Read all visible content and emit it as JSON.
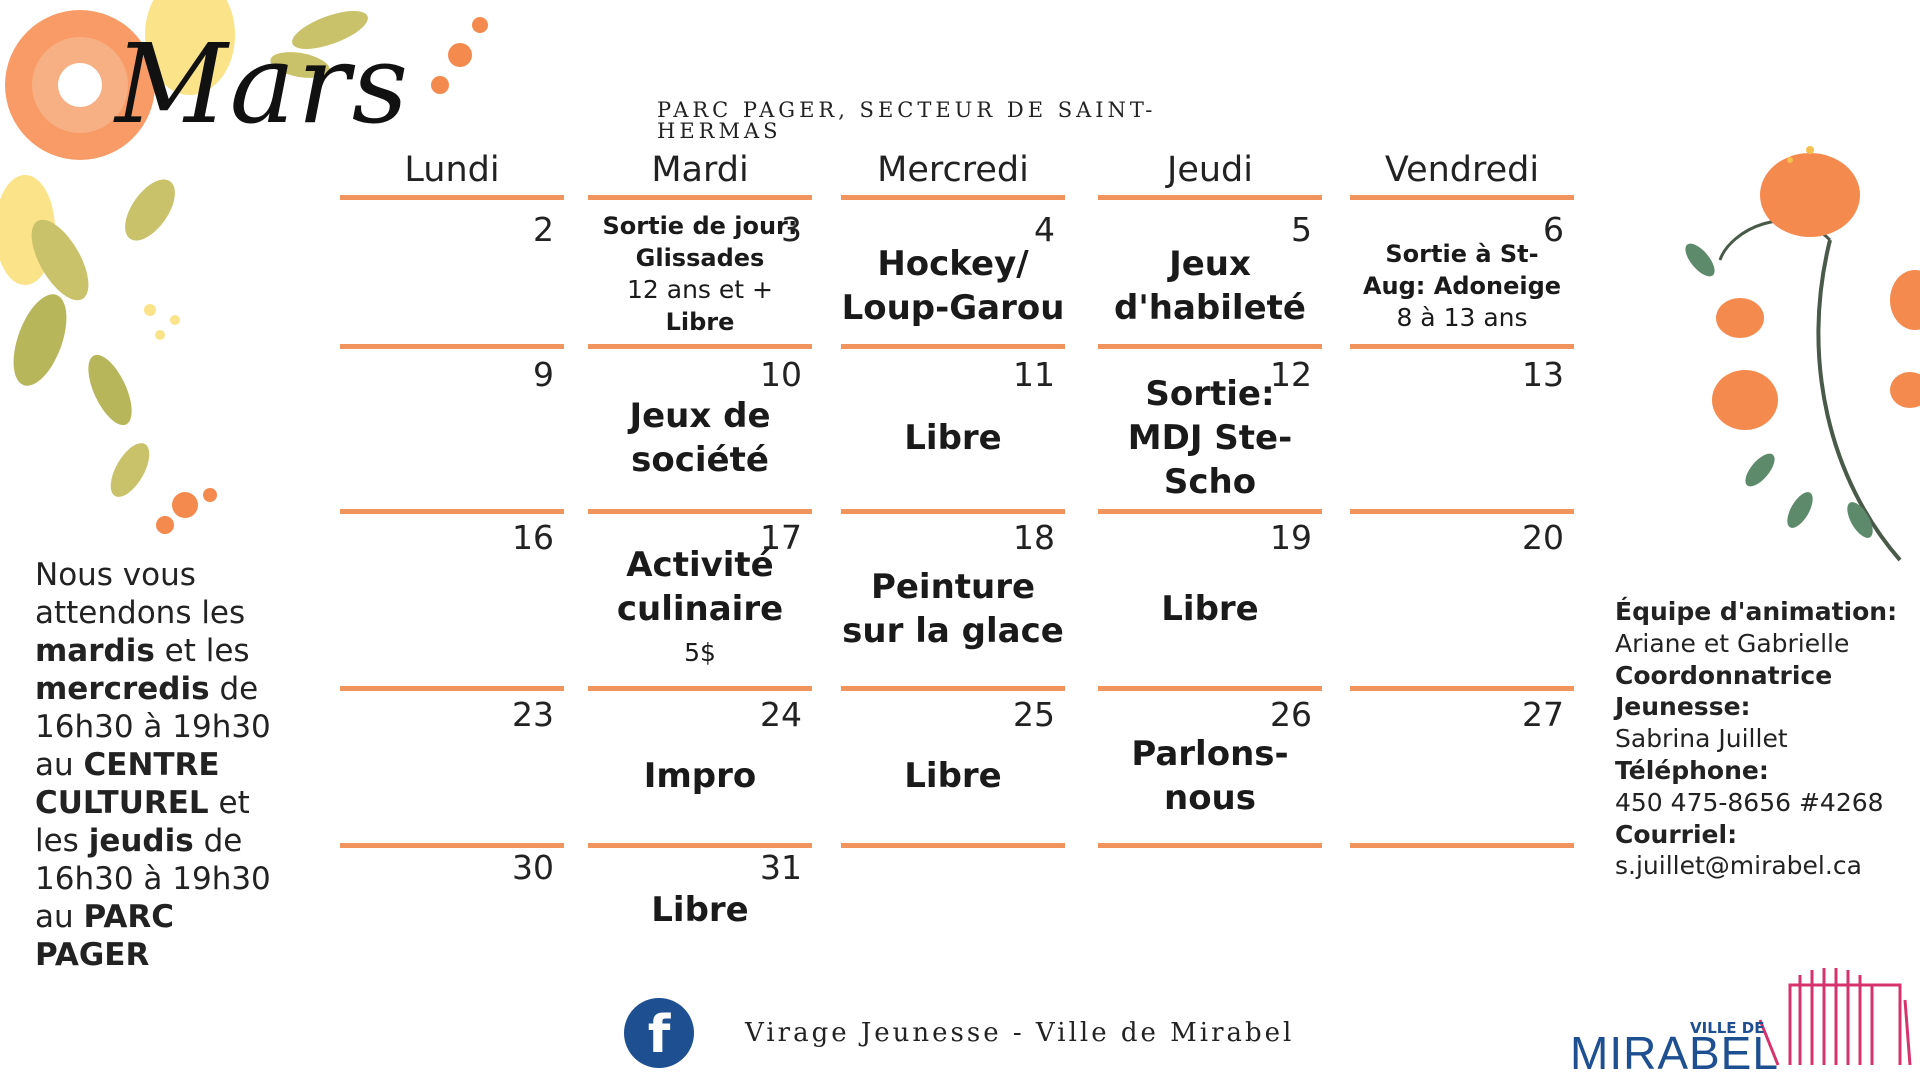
{
  "header": {
    "month": "Mars",
    "location": "PARC PAGER, SECTEUR DE SAINT-HERMAS"
  },
  "days": [
    "Lundi",
    "Mardi",
    "Mercredi",
    "Jeudi",
    "Vendredi"
  ],
  "weeks": [
    [
      {
        "date": "2",
        "event": []
      },
      {
        "date": "3",
        "event": [
          "Sortie de jour:",
          "Glissades"
        ],
        "sub": "12 ans et +",
        "event2": "Libre"
      },
      {
        "date": "4",
        "event": [
          "Hockey/",
          "Loup-Garou"
        ]
      },
      {
        "date": "5",
        "event": [
          "Jeux",
          "d'habileté"
        ]
      },
      {
        "date": "6",
        "event": [
          "Sortie à St-",
          "Aug: Adoneige"
        ],
        "sub": "8 à 13 ans"
      }
    ],
    [
      {
        "date": "9",
        "event": []
      },
      {
        "date": "10",
        "event": [
          "Jeux de",
          "société"
        ]
      },
      {
        "date": "11",
        "event": [
          "Libre"
        ]
      },
      {
        "date": "12",
        "event": [
          "Sortie:",
          "MDJ Ste-",
          "Scho"
        ]
      },
      {
        "date": "13",
        "event": []
      }
    ],
    [
      {
        "date": "16",
        "event": []
      },
      {
        "date": "17",
        "event": [
          "Activité",
          "culinaire"
        ],
        "sub": "5$"
      },
      {
        "date": "18",
        "event": [
          "Peinture",
          "sur la glace"
        ]
      },
      {
        "date": "19",
        "event": [
          "Libre"
        ]
      },
      {
        "date": "20",
        "event": []
      }
    ],
    [
      {
        "date": "23",
        "event": []
      },
      {
        "date": "24",
        "event": [
          "Impro"
        ]
      },
      {
        "date": "25",
        "event": [
          "Libre"
        ]
      },
      {
        "date": "26",
        "event": [
          "Parlons-",
          "nous"
        ]
      },
      {
        "date": "27",
        "event": []
      }
    ],
    [
      {
        "date": "30",
        "event": []
      },
      {
        "date": "31",
        "event": [
          "Libre"
        ]
      }
    ]
  ],
  "schedule": {
    "p1": "Nous vous attendons les",
    "b1": "mardis",
    "p2": "et les",
    "b2": "mercredis",
    "p3": "de 16h30 à 19h30 au",
    "b3": "CENTRE CULTUREL",
    "p4": "et les",
    "b4": "jeudis",
    "p5": "de 16h30 à 19h30 au",
    "b5": "PARC PAGER"
  },
  "contact": {
    "team_label": "Équipe d'animation:",
    "team_value": "Ariane et Gabrielle",
    "coord_label": "Coordonnatrice Jeunesse:",
    "coord_value": "Sabrina Juillet",
    "phone_label": "Téléphone:",
    "phone_value": "450 475-8656 #4268",
    "email_label": "Courriel:",
    "email_value": "s.juillet@mirabel.ca"
  },
  "footer": {
    "facebook_icon": "f",
    "text": "Virage Jeunesse - Ville de Mirabel"
  },
  "logo": {
    "small": "VILLE DE",
    "main": "MIRABEL"
  },
  "colors": {
    "accent": "#f0935c",
    "facebook": "#1d4f91",
    "logo_pink": "#d6336c"
  }
}
